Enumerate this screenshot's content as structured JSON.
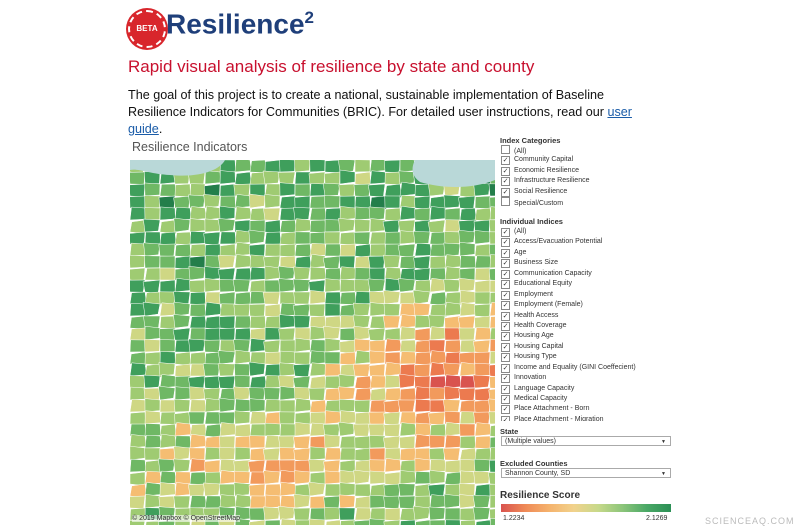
{
  "header": {
    "badge": "BETA",
    "title": "Resilience",
    "superscript": "2"
  },
  "subtitle": "Rapid visual analysis of resilience by state and county",
  "intro": {
    "text": "The goal of this project is to create a national, sustainable implementation of Baseline Resilience Indicators for Communities (BRIC). For detailed user instructions, read our",
    "link": "user guide",
    "end": "."
  },
  "map": {
    "title": "Resilience Indicators",
    "attribution": "© 2019 Mapbox © OpenStreetMap"
  },
  "index_categories": {
    "title": "Index Categories",
    "items": [
      {
        "label": "(All)",
        "checked": false
      },
      {
        "label": "Community Capital",
        "checked": true
      },
      {
        "label": "Economic Resilience",
        "checked": true
      },
      {
        "label": "Infrastructure Resilience",
        "checked": true
      },
      {
        "label": "Social Resilience",
        "checked": true
      },
      {
        "label": "Special/Custom",
        "checked": false
      }
    ]
  },
  "individual_indices": {
    "title": "Individual Indices",
    "items": [
      {
        "label": "(All)",
        "checked": true
      },
      {
        "label": "Access/Evacuation Potential",
        "checked": true
      },
      {
        "label": "Age",
        "checked": true
      },
      {
        "label": "Business Size",
        "checked": true
      },
      {
        "label": "Communication Capacity",
        "checked": true
      },
      {
        "label": "Educational Equity",
        "checked": true
      },
      {
        "label": "Employment",
        "checked": true
      },
      {
        "label": "Employment (Female)",
        "checked": true
      },
      {
        "label": "Health Access",
        "checked": true
      },
      {
        "label": "Health Coverage",
        "checked": true
      },
      {
        "label": "Housing Age",
        "checked": true
      },
      {
        "label": "Housing Capital",
        "checked": true
      },
      {
        "label": "Housing Type",
        "checked": true
      },
      {
        "label": "Income and Equality (GINI Coeffecient)",
        "checked": true
      },
      {
        "label": "Innovation",
        "checked": true
      },
      {
        "label": "Language Capacity",
        "checked": true
      },
      {
        "label": "Medical Capacity",
        "checked": true
      },
      {
        "label": "Place Attachment - Born",
        "checked": true
      },
      {
        "label": "Place Attachment - Migration",
        "checked": true
      }
    ]
  },
  "state_filter": {
    "label": "State",
    "value": "(Multiple values)"
  },
  "excluded_filter": {
    "label": "Excluded Counties",
    "value": "Shannon County, SD"
  },
  "legend": {
    "title": "Resilience Score",
    "min": 1.2234,
    "max": 2.1269
  },
  "watermark": "SCIENCEAQ.COM"
}
